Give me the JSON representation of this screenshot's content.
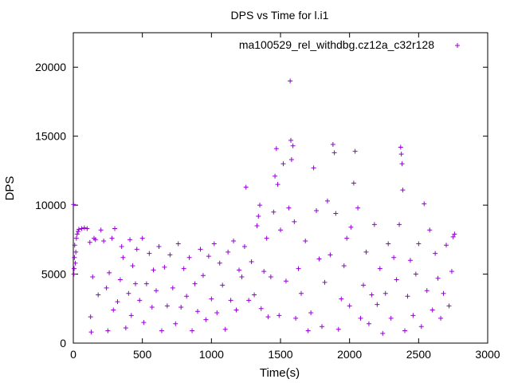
{
  "chart_data": {
    "type": "scatter",
    "title": "DPS vs Time for l.i1",
    "xlabel": "Time(s)",
    "ylabel": "DPS",
    "xlim": [
      0,
      3000
    ],
    "ylim": [
      0,
      22500
    ],
    "xticks": [
      0,
      500,
      1000,
      1500,
      2000,
      2500,
      3000
    ],
    "xtick_labels": [
      "0",
      "500",
      "1000",
      "1500",
      "2000",
      "2500",
      "3000"
    ],
    "yticks": [
      0,
      5000,
      10000,
      15000,
      20000
    ],
    "ytick_labels": [
      "0",
      "5000",
      "10000",
      "15000",
      "20000"
    ],
    "grid": false,
    "legend_position": "top-right",
    "marker": "+",
    "series": [
      {
        "name": "ma100529_rel_withdbg.cz12a_c32r128",
        "color": "#9400d3",
        "points": [
          [
            2,
            10050
          ],
          [
            4,
            5000
          ],
          [
            6,
            5400
          ],
          [
            8,
            6200
          ],
          [
            10,
            7100
          ],
          [
            14,
            5800
          ],
          [
            18,
            6600
          ],
          [
            22,
            7600
          ],
          [
            28,
            7900
          ],
          [
            35,
            8100
          ],
          [
            40,
            8250
          ],
          [
            60,
            8300
          ],
          [
            80,
            8350
          ],
          [
            100,
            8300
          ],
          [
            120,
            7300
          ],
          [
            125,
            1900
          ],
          [
            130,
            800
          ],
          [
            140,
            4800
          ],
          [
            150,
            7600
          ],
          [
            160,
            7500
          ],
          [
            180,
            3500
          ],
          [
            200,
            8200
          ],
          [
            220,
            7400
          ],
          [
            240,
            4000
          ],
          [
            250,
            900
          ],
          [
            260,
            5100
          ],
          [
            280,
            7600
          ],
          [
            290,
            2400
          ],
          [
            300,
            8300
          ],
          [
            320,
            3000
          ],
          [
            340,
            4600
          ],
          [
            350,
            7000
          ],
          [
            360,
            6200
          ],
          [
            380,
            1100
          ],
          [
            400,
            3600
          ],
          [
            410,
            7500
          ],
          [
            420,
            2000
          ],
          [
            430,
            5600
          ],
          [
            450,
            4300
          ],
          [
            460,
            6800
          ],
          [
            480,
            3100
          ],
          [
            500,
            7600
          ],
          [
            510,
            1500
          ],
          [
            530,
            4300
          ],
          [
            550,
            6500
          ],
          [
            570,
            2600
          ],
          [
            580,
            5300
          ],
          [
            600,
            3800
          ],
          [
            620,
            7000
          ],
          [
            640,
            900
          ],
          [
            660,
            5500
          ],
          [
            680,
            2700
          ],
          [
            700,
            6400
          ],
          [
            720,
            4000
          ],
          [
            740,
            1400
          ],
          [
            760,
            7200
          ],
          [
            780,
            2600
          ],
          [
            800,
            5400
          ],
          [
            820,
            3400
          ],
          [
            840,
            6200
          ],
          [
            860,
            900
          ],
          [
            880,
            4300
          ],
          [
            900,
            2300
          ],
          [
            920,
            6800
          ],
          [
            940,
            4900
          ],
          [
            960,
            1700
          ],
          [
            980,
            6300
          ],
          [
            1000,
            3200
          ],
          [
            1020,
            7200
          ],
          [
            1040,
            2200
          ],
          [
            1060,
            5800
          ],
          [
            1080,
            4200
          ],
          [
            1100,
            1000
          ],
          [
            1120,
            6600
          ],
          [
            1140,
            3100
          ],
          [
            1160,
            7400
          ],
          [
            1180,
            2400
          ],
          [
            1200,
            5300
          ],
          [
            1220,
            4800
          ],
          [
            1240,
            7000
          ],
          [
            1250,
            11300
          ],
          [
            1270,
            3100
          ],
          [
            1290,
            5900
          ],
          [
            1310,
            3500
          ],
          [
            1330,
            8500
          ],
          [
            1340,
            9200
          ],
          [
            1350,
            10000
          ],
          [
            1360,
            2500
          ],
          [
            1380,
            5200
          ],
          [
            1400,
            7600
          ],
          [
            1410,
            1900
          ],
          [
            1430,
            4800
          ],
          [
            1450,
            9500
          ],
          [
            1460,
            12100
          ],
          [
            1470,
            14100
          ],
          [
            1480,
            11500
          ],
          [
            1490,
            2000
          ],
          [
            1500,
            8200
          ],
          [
            1520,
            13000
          ],
          [
            1540,
            4500
          ],
          [
            1560,
            9800
          ],
          [
            1570,
            19000
          ],
          [
            1575,
            14700
          ],
          [
            1580,
            13300
          ],
          [
            1590,
            14300
          ],
          [
            1600,
            8800
          ],
          [
            1610,
            1800
          ],
          [
            1630,
            5400
          ],
          [
            1650,
            3600
          ],
          [
            1680,
            7400
          ],
          [
            1700,
            900
          ],
          [
            1720,
            2200
          ],
          [
            1740,
            12700
          ],
          [
            1760,
            9600
          ],
          [
            1780,
            6100
          ],
          [
            1800,
            1200
          ],
          [
            1820,
            4400
          ],
          [
            1840,
            10300
          ],
          [
            1860,
            6400
          ],
          [
            1880,
            14400
          ],
          [
            1890,
            13800
          ],
          [
            1900,
            9400
          ],
          [
            1920,
            1000
          ],
          [
            1940,
            3200
          ],
          [
            1960,
            5600
          ],
          [
            1980,
            7600
          ],
          [
            2000,
            2700
          ],
          [
            2010,
            8400
          ],
          [
            2030,
            11600
          ],
          [
            2040,
            13900
          ],
          [
            2060,
            9800
          ],
          [
            2080,
            1800
          ],
          [
            2100,
            4200
          ],
          [
            2120,
            6600
          ],
          [
            2140,
            1400
          ],
          [
            2160,
            3500
          ],
          [
            2180,
            8600
          ],
          [
            2200,
            2800
          ],
          [
            2220,
            5400
          ],
          [
            2240,
            700
          ],
          [
            2260,
            3600
          ],
          [
            2280,
            7200
          ],
          [
            2300,
            1800
          ],
          [
            2320,
            6200
          ],
          [
            2340,
            4600
          ],
          [
            2360,
            8600
          ],
          [
            2370,
            14200
          ],
          [
            2375,
            13700
          ],
          [
            2380,
            13000
          ],
          [
            2385,
            11100
          ],
          [
            2400,
            900
          ],
          [
            2420,
            3400
          ],
          [
            2440,
            6000
          ],
          [
            2460,
            2000
          ],
          [
            2480,
            5000
          ],
          [
            2500,
            7200
          ],
          [
            2520,
            1200
          ],
          [
            2540,
            10100
          ],
          [
            2560,
            3800
          ],
          [
            2580,
            8200
          ],
          [
            2600,
            2400
          ],
          [
            2620,
            6500
          ],
          [
            2640,
            4700
          ],
          [
            2660,
            1800
          ],
          [
            2680,
            3600
          ],
          [
            2700,
            7100
          ],
          [
            2720,
            2700
          ],
          [
            2740,
            5200
          ],
          [
            2750,
            7700
          ],
          [
            2760,
            7900
          ]
        ]
      }
    ]
  }
}
